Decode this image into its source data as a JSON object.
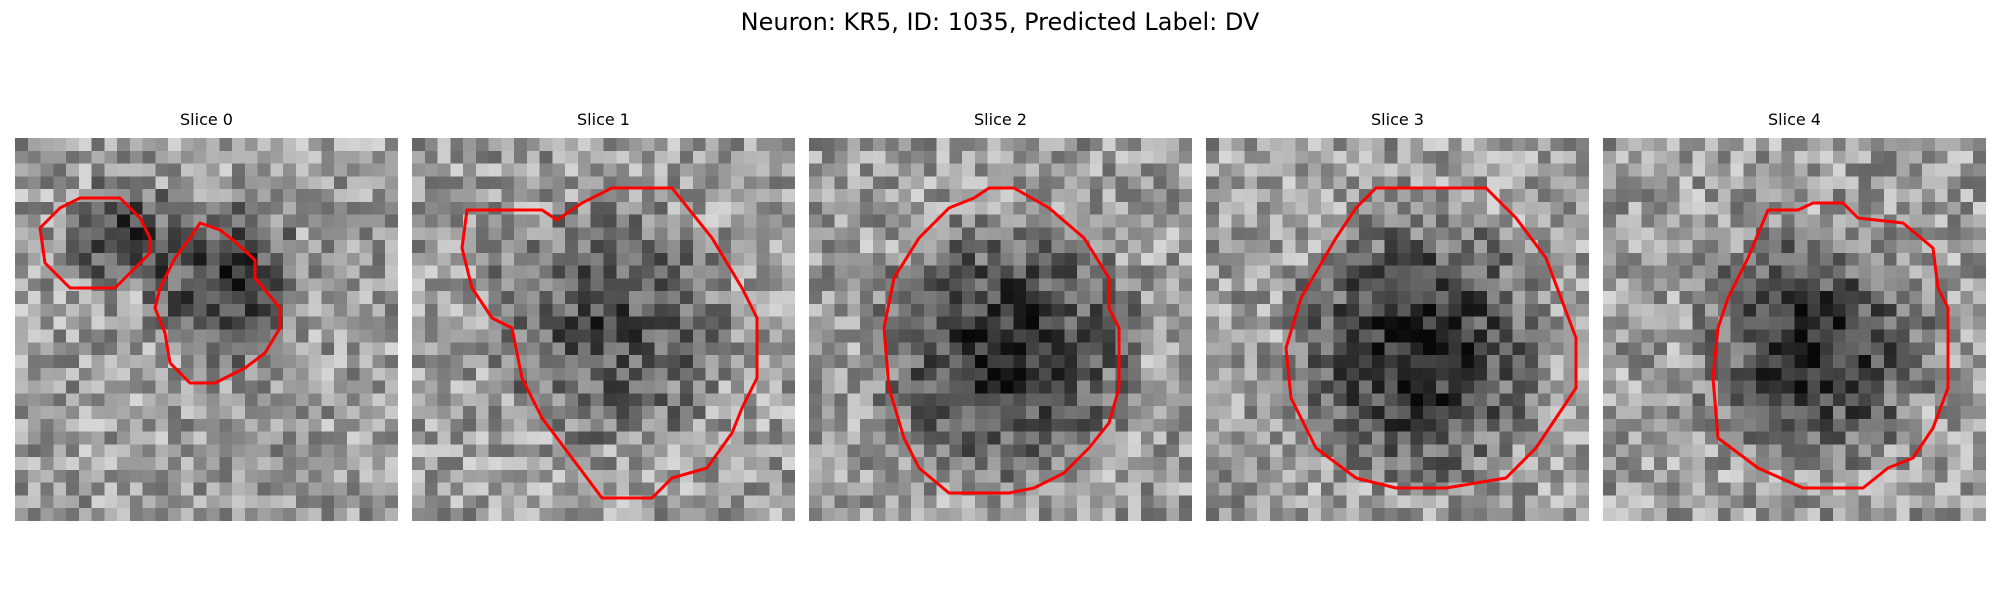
{
  "figure": {
    "title": "Neuron: KR5, ID: 1035, Predicted Label: DV"
  },
  "colors": {
    "contour": "#ff0000",
    "background": "#ffffff"
  },
  "panels": [
    {
      "title": "Slice 0"
    },
    {
      "title": "Slice 1"
    },
    {
      "title": "Slice 2"
    },
    {
      "title": "Slice 3"
    },
    {
      "title": "Slice 4"
    }
  ]
}
